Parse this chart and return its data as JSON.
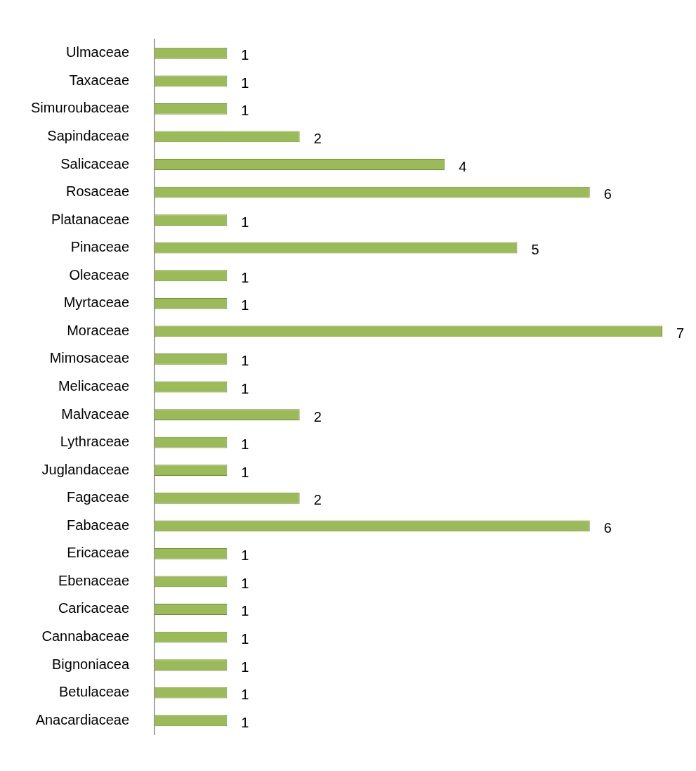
{
  "chart_data": {
    "type": "bar",
    "orientation": "horizontal",
    "data_labels": true,
    "categories": [
      "Ulmaceae",
      "Taxaceae",
      "Simuroubaceae",
      "Sapindaceae",
      "Salicaceae",
      "Rosaceae",
      "Platanaceae",
      "Pinaceae",
      "Oleaceae",
      "Myrtaceae",
      "Moraceae",
      "Mimosaceae",
      "Melicaceae",
      "Malvaceae",
      "Lythraceae",
      "Juglandaceae",
      "Fagaceae",
      "Fabaceae",
      "Ericaceae",
      "Ebenaceae",
      "Caricaceae",
      "Cannabaceae",
      "Bignoniacea",
      "Betulaceae",
      "Anacardiaceae"
    ],
    "values": [
      1,
      1,
      1,
      2,
      4,
      6,
      1,
      5,
      1,
      1,
      7,
      1,
      1,
      2,
      1,
      1,
      2,
      6,
      1,
      1,
      1,
      1,
      1,
      1,
      1
    ],
    "color": "#9bbb59"
  }
}
